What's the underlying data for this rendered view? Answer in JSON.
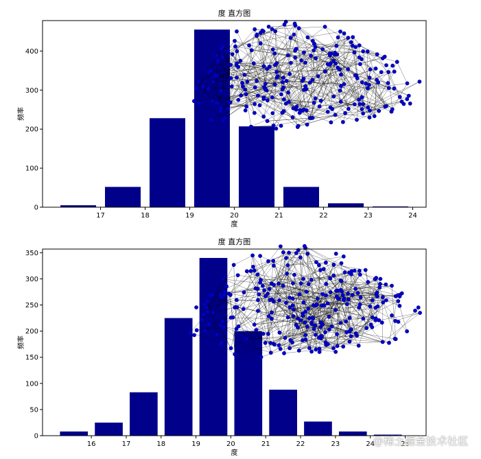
{
  "chart_data": [
    {
      "type": "bar",
      "title": "度 直方图",
      "xlabel": "度",
      "ylabel": "频率",
      "bar_color": "#00008B",
      "x": [
        16.5,
        17.5,
        18.5,
        19.5,
        20.5,
        21.5,
        22.5,
        23.5
      ],
      "values": [
        5,
        52,
        228,
        455,
        207,
        52,
        10,
        2
      ],
      "bar_width": 0.8,
      "xlim": [
        15.7,
        24.3
      ],
      "ylim": [
        0,
        478
      ],
      "xticks": [
        "17",
        "18",
        "19",
        "20",
        "21",
        "22",
        "23",
        "24"
      ],
      "xtick_values": [
        17,
        18,
        19,
        20,
        21,
        22,
        23,
        24
      ],
      "yticks": [
        "0",
        "100",
        "200",
        "300",
        "400"
      ],
      "ytick_values": [
        0,
        100,
        200,
        300,
        400
      ],
      "grid": false,
      "overlay": {
        "type": "network",
        "node_color": "#0000CD",
        "edge_color": "#000000"
      }
    },
    {
      "type": "bar",
      "title": "度 直方图",
      "xlabel": "度",
      "ylabel": "频率",
      "bar_color": "#00008B",
      "x": [
        15.5,
        16.5,
        17.5,
        18.5,
        19.5,
        20.5,
        21.5,
        22.5,
        23.5,
        24.5
      ],
      "values": [
        8,
        25,
        83,
        225,
        340,
        200,
        88,
        27,
        8,
        2
      ],
      "bar_width": 0.8,
      "xlim": [
        14.6,
        25.6
      ],
      "ylim": [
        0,
        357
      ],
      "xticks": [
        "16",
        "17",
        "18",
        "19",
        "20",
        "21",
        "22",
        "23",
        "24",
        "25"
      ],
      "xtick_values": [
        16,
        17,
        18,
        19,
        20,
        21,
        22,
        23,
        24,
        25
      ],
      "yticks": [
        "0",
        "50",
        "100",
        "150",
        "200",
        "250",
        "300",
        "350"
      ],
      "ytick_values": [
        0,
        50,
        100,
        150,
        200,
        250,
        300,
        350
      ],
      "grid": false,
      "overlay": {
        "type": "network",
        "node_color": "#0000CD",
        "edge_color": "#000000"
      }
    }
  ],
  "watermark": "@稀土掘金技术社区"
}
